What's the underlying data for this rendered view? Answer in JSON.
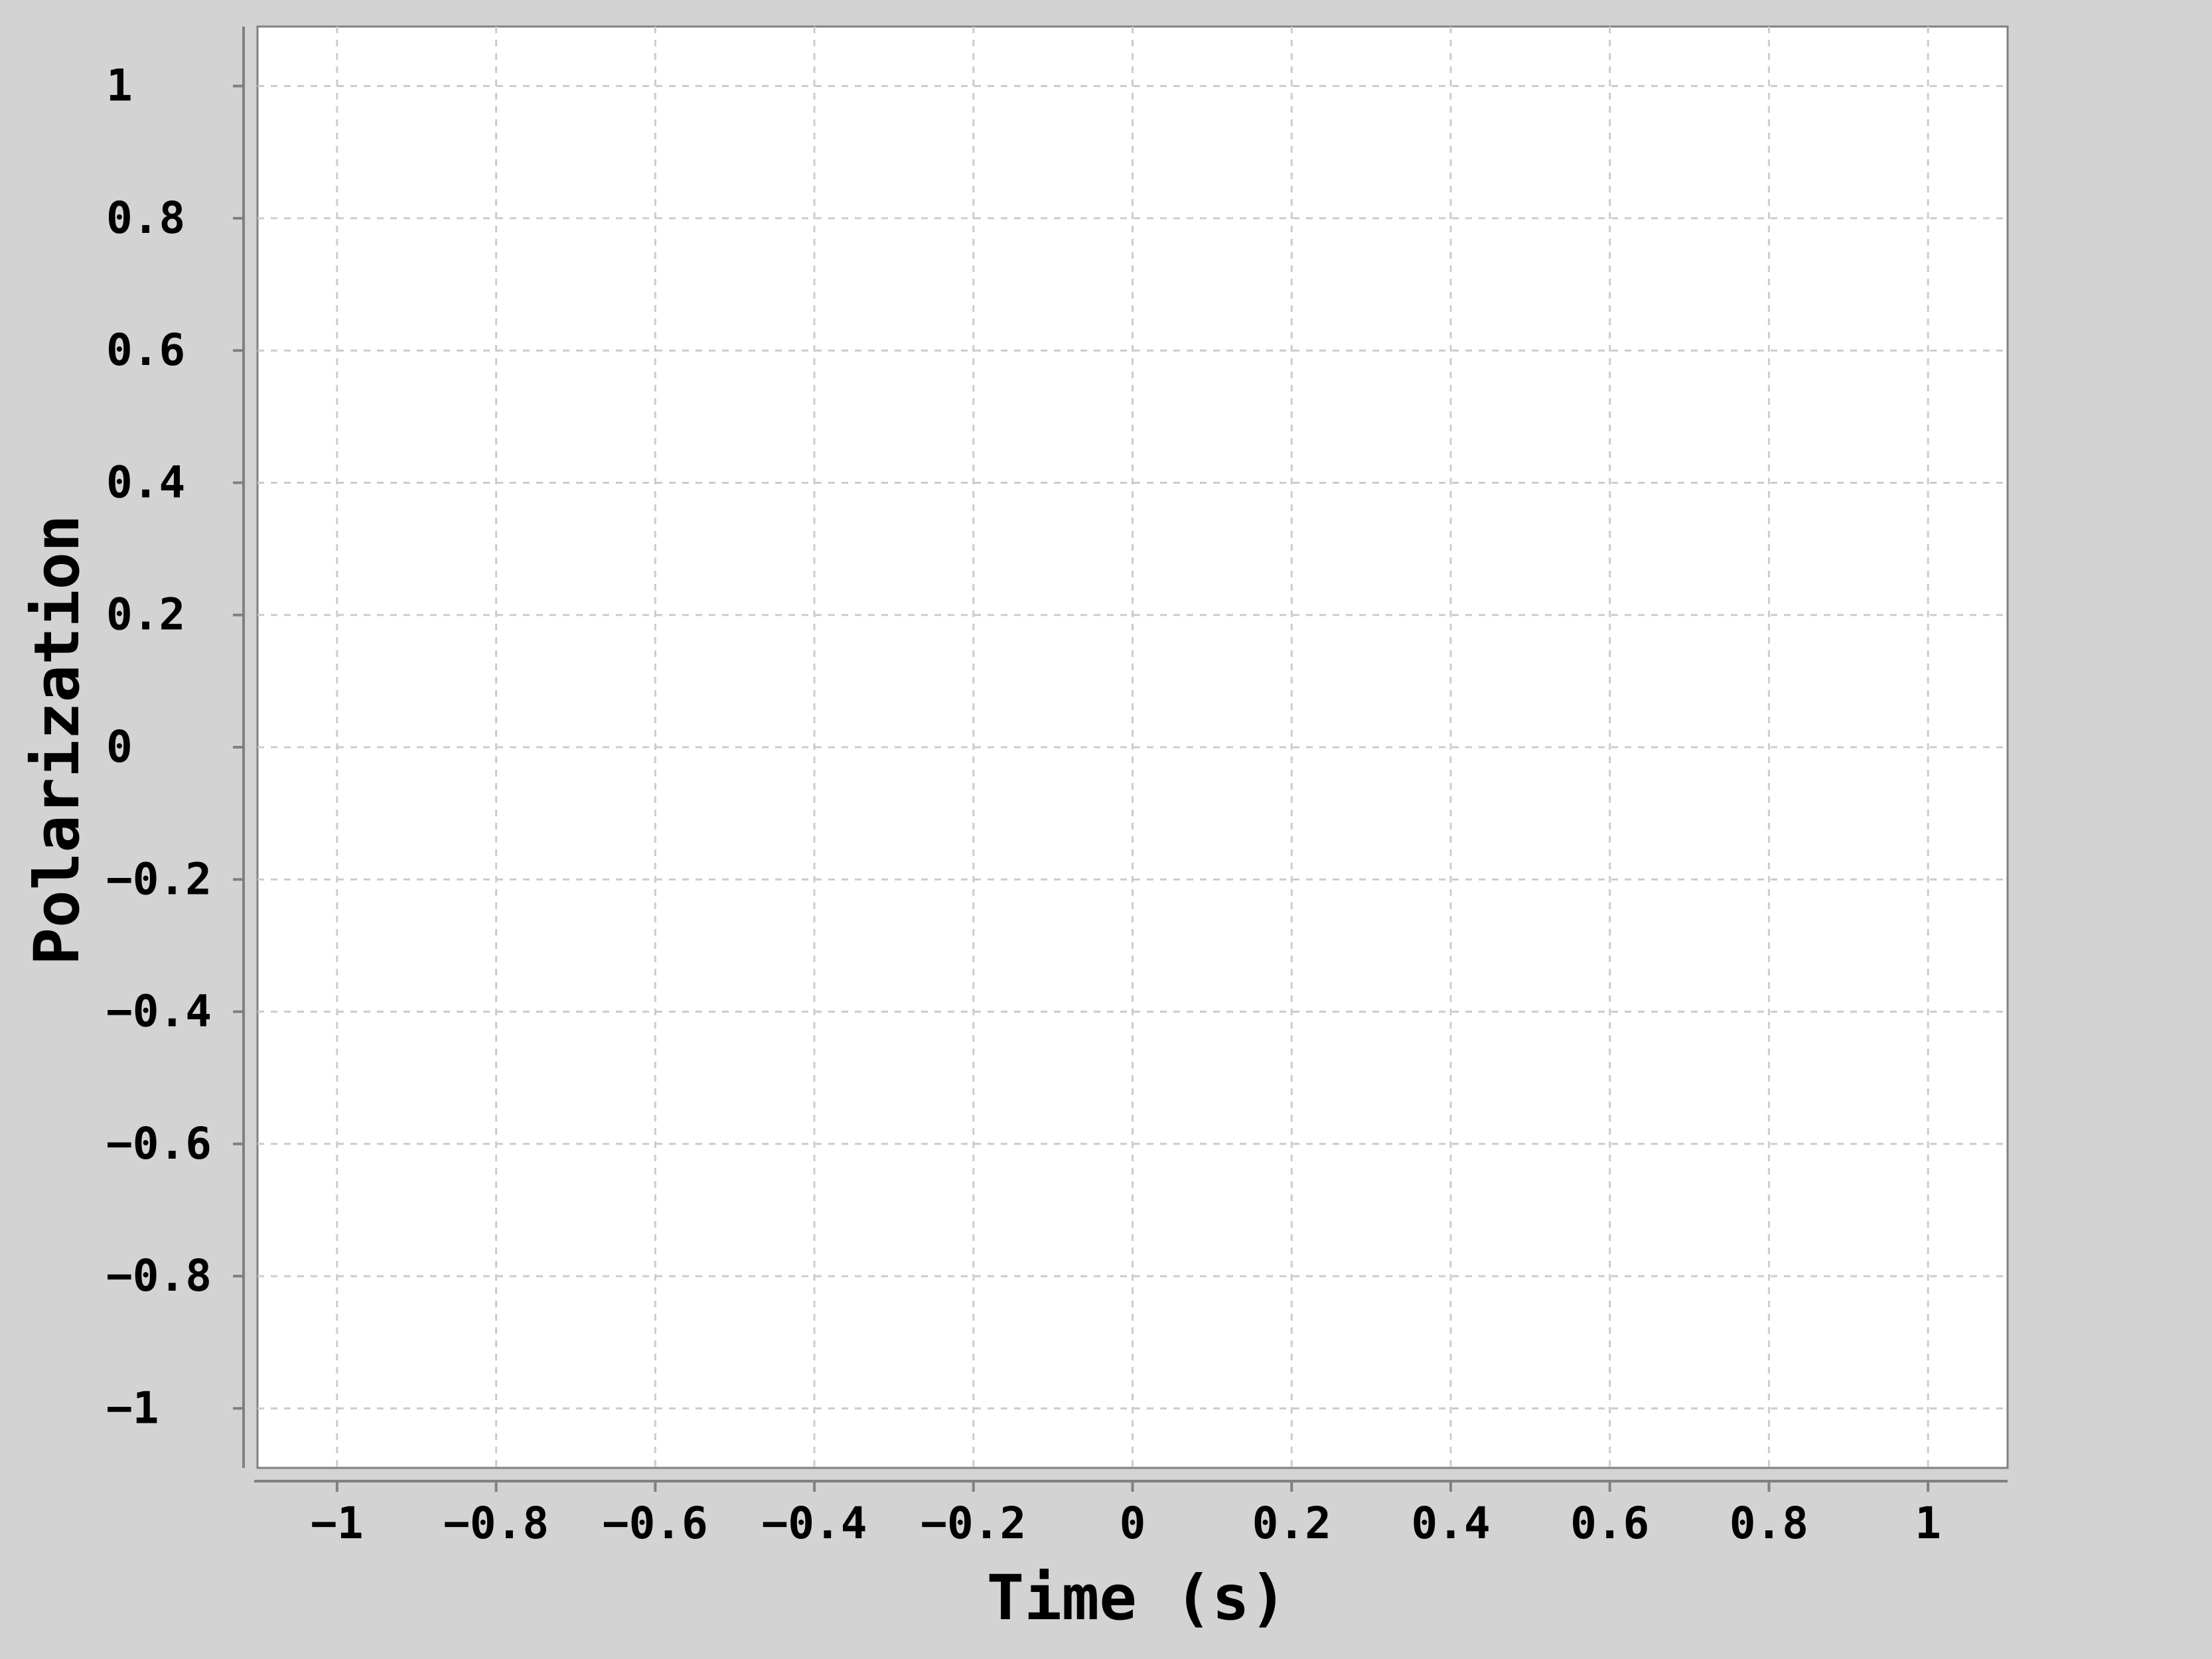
{
  "chart_data": {
    "type": "line",
    "title": "",
    "xlabel": "Time (s)",
    "ylabel": "Polarization",
    "xlim": [
      -1.1,
      1.1
    ],
    "ylim": [
      -1.09,
      1.09
    ],
    "x_ticks": [
      -1,
      -0.8,
      -0.6,
      -0.4,
      -0.2,
      0,
      0.2,
      0.4,
      0.6,
      0.8,
      1
    ],
    "y_ticks": [
      1,
      0.8,
      0.6,
      0.4,
      0.2,
      0,
      -0.2,
      -0.4,
      -0.6,
      -0.8,
      -1
    ],
    "x_tick_labels": [
      "−1",
      "−0.8",
      "−0.6",
      "−0.4",
      "−0.2",
      "0",
      "0.2",
      "0.4",
      "0.6",
      "0.8",
      "1"
    ],
    "y_tick_labels": [
      "1",
      "0.8",
      "0.6",
      "0.4",
      "0.2",
      "0",
      "−0.2",
      "−0.4",
      "−0.6",
      "−0.8",
      "−1"
    ],
    "grid": true,
    "series": [],
    "colors": {
      "background": "#d3d3d3",
      "plot_background": "#ffffff",
      "grid": "#cccccc",
      "axis": "#808080",
      "text": "#000000"
    }
  }
}
